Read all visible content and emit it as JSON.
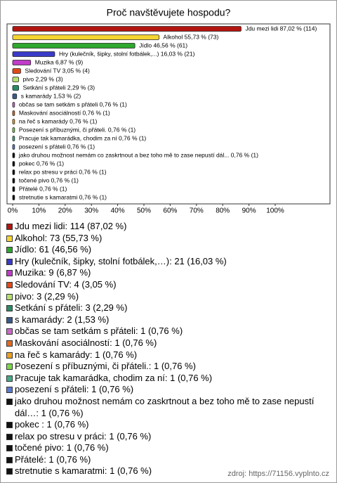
{
  "chart_data": {
    "type": "bar",
    "orientation": "horizontal",
    "title": "Proč navštěvujete hospodu?",
    "values": [
      87.02,
      55.73,
      46.56,
      16.03,
      6.87,
      3.05,
      2.29,
      2.29,
      1.53,
      0.76,
      0.76,
      0.76,
      0.76,
      0.76,
      0.76,
      0.76,
      0.76,
      0.76,
      0.76,
      0.76,
      0.76
    ],
    "value_labels": [
      "Jdu mezi lidi 87,02 % (114)",
      "Alkohol 55,73 % (73)",
      "Jídlo 46,56 % (61)",
      "Hry (kulečník, šipky, stolní fotbálek,...) 16,03 % (21)",
      "Muzika 6,87 % (9)",
      "Sledování TV 3,05 % (4)",
      "pivo 2,29 % (3)",
      "Setkání s přáteli 2,29 % (3)",
      "s kamarády 1,53 % (2)",
      "občas se tam setkám s přáteli 0,76 % (1)",
      "Maskování asociálností 0,76 % (1)",
      "na řeč s kamarády 0,76 % (1)",
      "Posezení s příbuznými, či přáteli. 0,76 % (1)",
      "Pracuje tak kamarádka, chodim za ní 0,76 % (1)",
      "posezení s přáteli 0,76 % (1)",
      "jako druhou možnost nemám co zaskrtnout a bez toho mě to zase nepustí dál... 0,76 % (1)",
      "pokec  0,76 % (1)",
      "relax po stresu v práci 0,76 % (1)",
      "točené pivo 0,76 % (1)",
      "Přátelé 0,76 % (1)",
      "stretnutie s kamaratmi 0,76 % (1)"
    ],
    "colors": [
      "#b3140f",
      "#f5d431",
      "#2ea82e",
      "#3a3ac8",
      "#c03cc8",
      "#e04a18",
      "#b5e070",
      "#2a8a66",
      "#3a5a8a",
      "#c86ac8",
      "#e06a22",
      "#eea020",
      "#7ad84a",
      "#44aa88",
      "#5a7ad0",
      "#111111",
      "#111111",
      "#111111",
      "#111111",
      "#111111",
      "#111111"
    ],
    "xlim": [
      0,
      100
    ],
    "xticks": [
      {
        "value": 0,
        "label": "0%"
      },
      {
        "value": 10,
        "label": "10%"
      },
      {
        "value": 20,
        "label": "20%"
      },
      {
        "value": 30,
        "label": "30%"
      },
      {
        "value": 40,
        "label": "40%"
      },
      {
        "value": 50,
        "label": "50%"
      },
      {
        "value": 60,
        "label": "60%"
      },
      {
        "value": 70,
        "label": "70%"
      },
      {
        "value": 80,
        "label": "80%"
      },
      {
        "value": 90,
        "label": "90%"
      },
      {
        "value": 100,
        "label": "100%"
      }
    ],
    "legend": [
      "Jdu mezi lidi: 114 (87,02 %)",
      "Alkohol: 73 (55,73 %)",
      "Jídlo: 61 (46,56 %)",
      "Hry (kulečník, šipky, stolní fotbálek,…): 21 (16,03 %)",
      "Muzika: 9 (6,87 %)",
      "Sledování TV: 4 (3,05 %)",
      "pivo: 3 (2,29 %)",
      "Setkání s přáteli: 3 (2,29 %)",
      "s kamarády: 2 (1,53 %)",
      "občas se tam setkám s přáteli: 1 (0,76 %)",
      "Maskování asociálností: 1 (0,76 %)",
      "na řeč s kamarády: 1 (0,76 %)",
      "Posezení s příbuznými, či přáteli.: 1 (0,76 %)",
      "Pracuje tak kamarádka, chodim za ní: 1 (0,76 %)",
      "posezení s přáteli: 1 (0,76 %)",
      "jako druhou možnost nemám co zaskrtnout a bez toho mě to zase nepustí dál…: 1 (0,76 %)",
      "pokec : 1 (0,76 %)",
      "relax po stresu v práci: 1 (0,76 %)",
      "točené pivo: 1 (0,76 %)",
      "Přátelé: 1 (0,76 %)",
      "stretnutie s kamaratmi: 1 (0,76 %)"
    ]
  },
  "footer": {
    "source": "zdroj: https://71156.vyplnto.cz"
  }
}
